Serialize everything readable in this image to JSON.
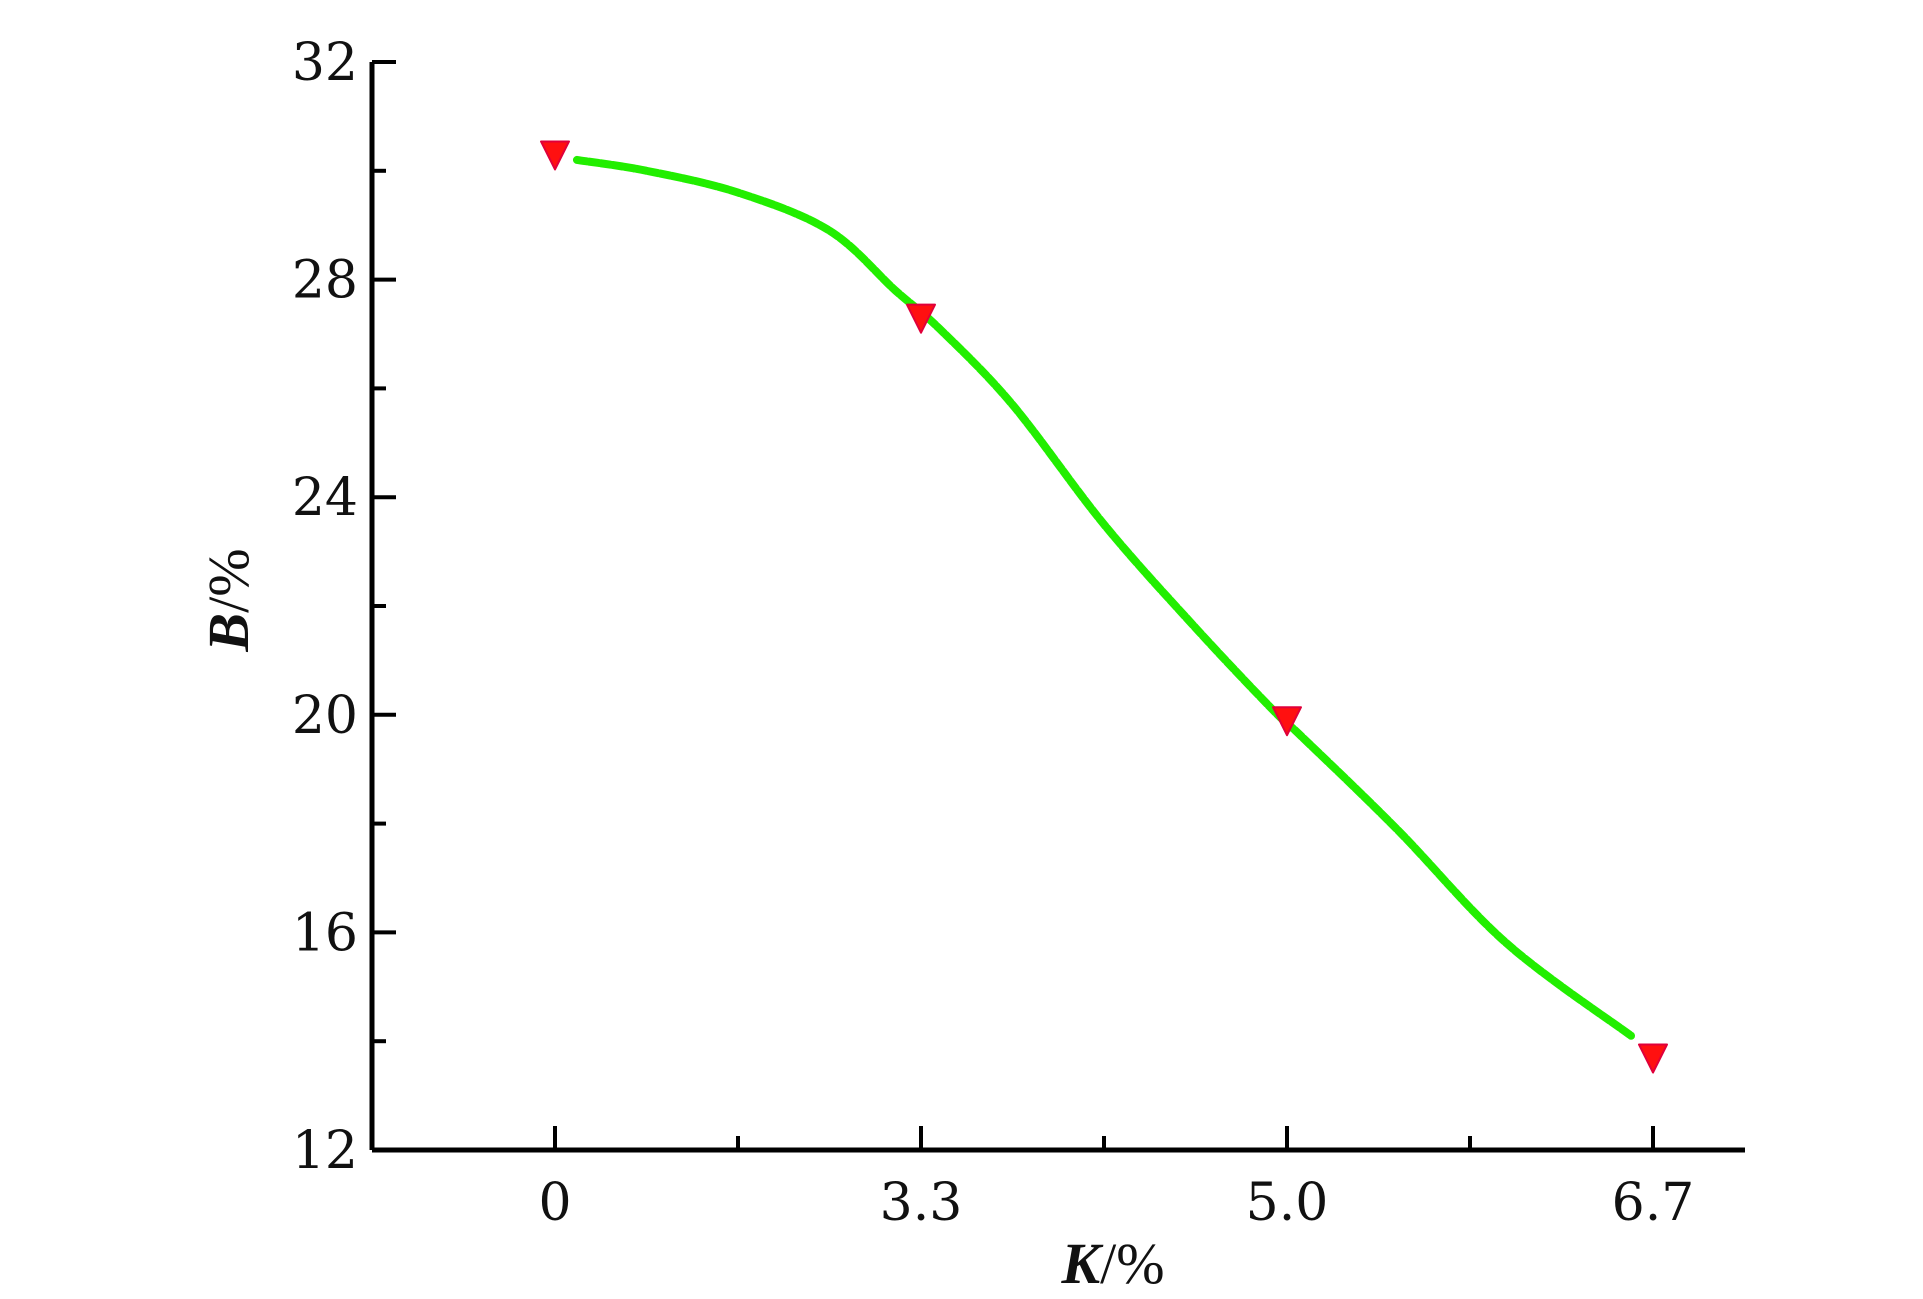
{
  "chart_data": {
    "type": "line",
    "xlabel": {
      "symbol": "K",
      "unit": "/%"
    },
    "ylabel": {
      "symbol": "B",
      "unit": "/%"
    },
    "x_categories": [
      "0",
      "3.3",
      "5.0",
      "6.7"
    ],
    "ylim": [
      12,
      32
    ],
    "y_ticks": [
      "12",
      "16",
      "20",
      "24",
      "28",
      "32"
    ],
    "y_minor_step": 2,
    "grid": false,
    "series": [
      {
        "markers": [
          {
            "x": 0,
            "y": 30.3
          },
          {
            "x": 1,
            "y": 27.3
          },
          {
            "x": 2,
            "y": 19.9
          },
          {
            "x": 3,
            "y": 13.7
          }
        ],
        "curve": [
          {
            "x": 0.06,
            "y": 30.2
          },
          {
            "x": 0.25,
            "y": 30.0
          },
          {
            "x": 0.5,
            "y": 29.6
          },
          {
            "x": 0.75,
            "y": 28.9
          },
          {
            "x": 0.93,
            "y": 27.8
          },
          {
            "x": 1.05,
            "y": 27.1
          },
          {
            "x": 1.25,
            "y": 25.7
          },
          {
            "x": 1.5,
            "y": 23.5
          },
          {
            "x": 1.75,
            "y": 21.6
          },
          {
            "x": 1.96,
            "y": 20.1
          },
          {
            "x": 2.04,
            "y": 19.6
          },
          {
            "x": 2.3,
            "y": 17.9
          },
          {
            "x": 2.6,
            "y": 15.8
          },
          {
            "x": 2.94,
            "y": 14.1
          }
        ]
      }
    ],
    "colors": {
      "line": "#22ee00",
      "marker": "#ff1010",
      "axis": "#000000"
    }
  }
}
